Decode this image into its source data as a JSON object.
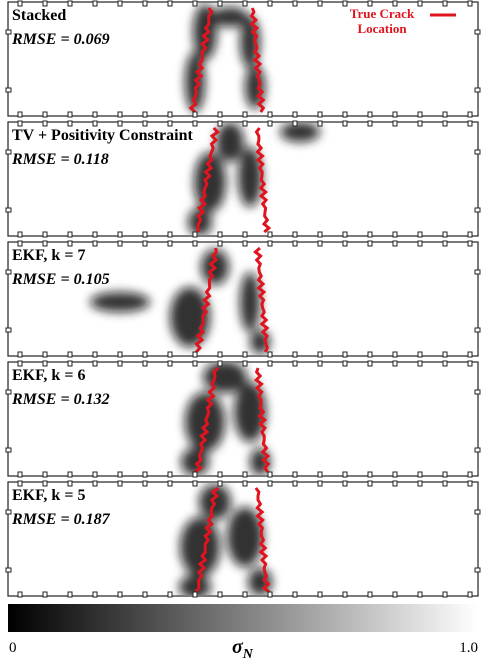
{
  "panels": [
    {
      "title": "Stacked",
      "metric": "RMSE = 0.069"
    },
    {
      "title": "TV + Positivity Constraint",
      "metric": "RMSE = 0.118"
    },
    {
      "title": "EKF, k = 7",
      "metric": "RMSE = 0.105"
    },
    {
      "title": "EKF, k = 6",
      "metric": "RMSE = 0.132"
    },
    {
      "title": "EKF, k = 5",
      "metric": "RMSE = 0.187"
    }
  ],
  "legend": {
    "lines": [
      "True Crack",
      "Location"
    ]
  },
  "colorbar": {
    "min": 0,
    "max": {
      "value": 1,
      "label": "1.0"
    },
    "symbol": "σ",
    "subscript": "N"
  }
}
